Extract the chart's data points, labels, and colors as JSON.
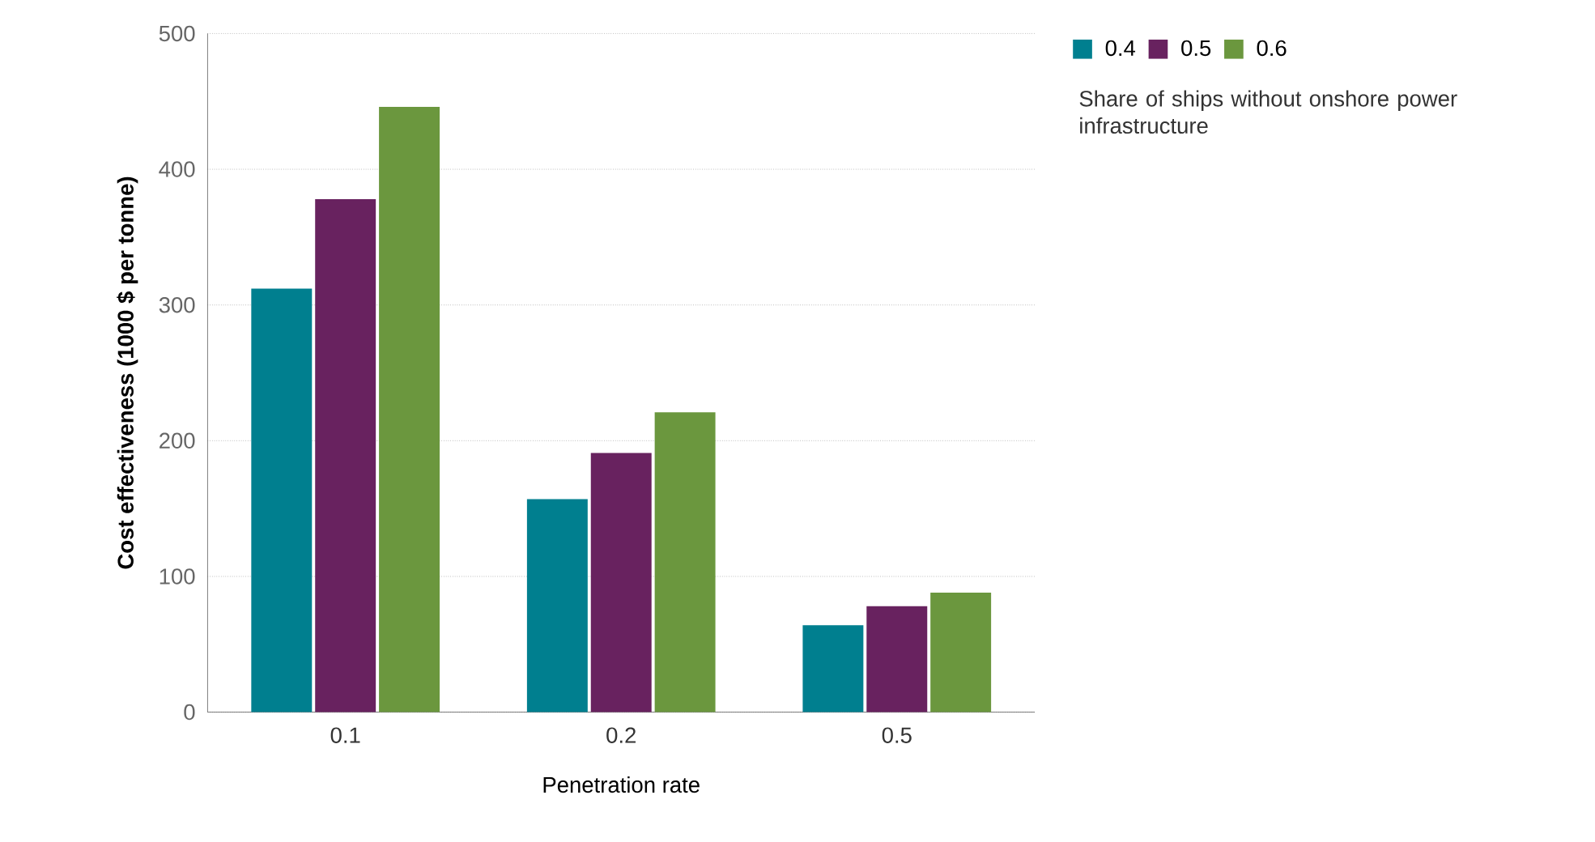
{
  "chart_data": {
    "type": "bar",
    "xlabel": "Penetration rate",
    "ylabel": "Cost effectiveness (1000 $ per tonne)",
    "legend_title": "Share of ships without onshore power infrastructure",
    "categories": [
      "0.1",
      "0.2",
      "0.5"
    ],
    "series": [
      {
        "name": "0.4",
        "color": "#007f8f",
        "values": [
          312,
          157,
          64
        ]
      },
      {
        "name": "0.5",
        "color": "#68225f",
        "values": [
          378,
          191,
          78
        ]
      },
      {
        "name": "0.6",
        "color": "#6b973e",
        "values": [
          446,
          221,
          88
        ]
      }
    ],
    "ylim": [
      0,
      500
    ],
    "yticks": [
      0,
      100,
      200,
      300,
      400,
      500
    ],
    "grid": "y",
    "legend": "top right"
  }
}
